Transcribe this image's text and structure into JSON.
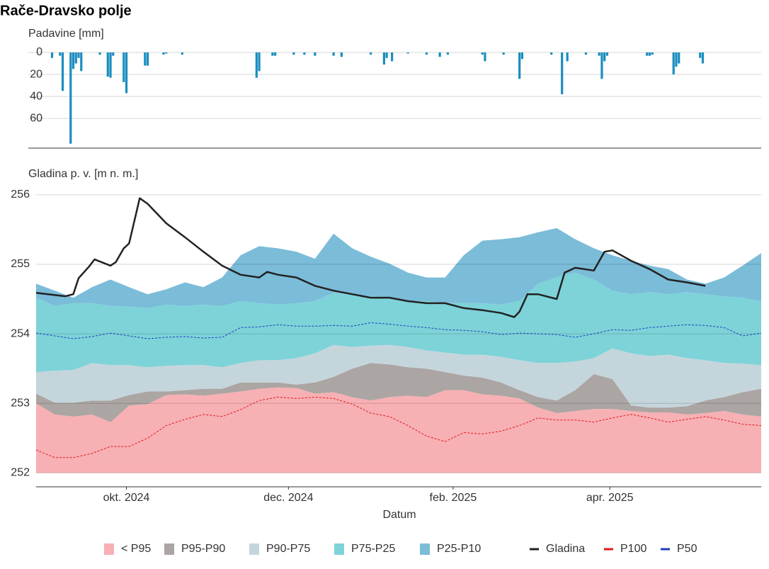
{
  "chart_data": [
    {
      "type": "bar",
      "title": "Rače-Dravsko polje",
      "y_label": "Padavine [mm]",
      "color": "#1a8dbf",
      "xlim": [
        "2024-08-28",
        "2025-05-28"
      ],
      "ylim": [
        0,
        87
      ],
      "y_reversed": true,
      "yticks": [
        0,
        20,
        40,
        60
      ],
      "grid": true,
      "x": [
        "2024-09-03",
        "2024-09-06",
        "2024-09-07",
        "2024-09-10",
        "2024-09-11",
        "2024-09-12",
        "2024-09-13",
        "2024-09-14",
        "2024-09-21",
        "2024-09-24",
        "2024-09-25",
        "2024-09-26",
        "2024-09-30",
        "2024-10-01",
        "2024-10-08",
        "2024-10-09",
        "2024-10-15",
        "2024-10-16",
        "2024-10-22",
        "2024-11-19",
        "2024-11-20",
        "2024-11-25",
        "2024-11-26",
        "2024-12-03",
        "2024-12-07",
        "2024-12-11",
        "2024-12-18",
        "2024-12-21",
        "2025-01-01",
        "2025-01-06",
        "2025-01-07",
        "2025-01-09",
        "2025-01-15",
        "2025-01-22",
        "2025-01-27",
        "2025-01-30",
        "2025-02-12",
        "2025-02-13",
        "2025-02-20",
        "2025-02-26",
        "2025-02-27",
        "2025-03-10",
        "2025-03-14",
        "2025-03-16",
        "2025-03-23",
        "2025-03-28",
        "2025-03-29",
        "2025-03-30",
        "2025-03-31",
        "2025-04-15",
        "2025-04-16",
        "2025-04-17",
        "2025-04-25",
        "2025-04-26",
        "2025-04-27",
        "2025-05-05",
        "2025-05-06"
      ],
      "values": [
        5,
        3,
        35,
        83,
        15,
        10,
        5,
        17,
        2,
        22,
        23,
        3,
        27,
        37,
        12,
        12,
        2,
        1,
        2,
        23,
        17,
        3,
        3,
        2,
        2,
        3,
        3,
        4,
        2,
        11,
        5,
        8,
        1,
        2,
        4,
        2,
        2,
        8,
        2,
        24,
        6,
        2,
        38,
        8,
        2,
        3,
        24,
        8,
        3,
        3,
        3,
        2,
        20,
        13,
        10,
        5,
        10
      ]
    },
    {
      "type": "area",
      "y_label": "Gladina p. v. [m n. m.]",
      "x_label": "Datum",
      "xlim": [
        "2024-08-28",
        "2025-05-28"
      ],
      "ylim": [
        251.8,
        256.1
      ],
      "yticks": [
        252,
        253,
        254,
        255,
        256
      ],
      "grid": true,
      "band_floor": 252,
      "xticks": [
        {
          "value": "2024-10-01",
          "label": "okt. 2024"
        },
        {
          "value": "2024-12-01",
          "label": "dec. 2024"
        },
        {
          "value": "2025-02-01",
          "label": "feb. 2025"
        },
        {
          "value": "2025-04-01",
          "label": "apr. 2025"
        }
      ],
      "x": [
        "2024-08-28",
        "2024-09-04",
        "2024-09-11",
        "2024-09-18",
        "2024-09-25",
        "2024-10-02",
        "2024-10-09",
        "2024-10-16",
        "2024-10-23",
        "2024-10-30",
        "2024-11-06",
        "2024-11-13",
        "2024-11-20",
        "2024-11-27",
        "2024-12-04",
        "2024-12-11",
        "2024-12-18",
        "2024-12-25",
        "2025-01-01",
        "2025-01-08",
        "2025-01-15",
        "2025-01-22",
        "2025-01-29",
        "2025-02-05",
        "2025-02-12",
        "2025-02-19",
        "2025-02-26",
        "2025-03-05",
        "2025-03-12",
        "2025-03-19",
        "2025-03-26",
        "2025-04-02",
        "2025-04-09",
        "2025-04-16",
        "2025-04-23",
        "2025-04-30",
        "2025-05-07",
        "2025-05-14",
        "2025-05-21",
        "2025-05-28"
      ],
      "series": [
        {
          "name": "< P95",
          "style": "band",
          "color": "#f7b0b4",
          "values": [
            253.0,
            252.84,
            252.81,
            252.84,
            252.73,
            252.97,
            252.99,
            253.12,
            253.13,
            253.11,
            253.14,
            253.17,
            253.21,
            253.23,
            253.22,
            253.14,
            253.16,
            253.09,
            253.04,
            253.09,
            253.11,
            253.09,
            253.19,
            253.19,
            253.13,
            253.11,
            253.07,
            252.94,
            252.86,
            252.89,
            252.92,
            252.92,
            252.89,
            252.87,
            252.87,
            252.84,
            252.86,
            252.89,
            252.84,
            252.81
          ]
        },
        {
          "name": "P95-P90",
          "style": "band",
          "color": "#aba5a3",
          "values": [
            253.14,
            253.01,
            253.01,
            253.04,
            253.04,
            253.12,
            253.17,
            253.17,
            253.19,
            253.21,
            253.21,
            253.3,
            253.3,
            253.3,
            253.27,
            253.3,
            253.38,
            253.5,
            253.58,
            253.56,
            253.52,
            253.5,
            253.45,
            253.4,
            253.37,
            253.3,
            253.19,
            253.09,
            253.04,
            253.19,
            253.42,
            253.35,
            252.97,
            252.94,
            252.94,
            252.96,
            253.04,
            253.09,
            253.16,
            253.21
          ]
        },
        {
          "name": "P90-P75",
          "style": "band",
          "color": "#c5d5dc",
          "values": [
            253.45,
            253.47,
            253.48,
            253.58,
            253.55,
            253.55,
            253.52,
            253.54,
            253.55,
            253.55,
            253.52,
            253.58,
            253.62,
            253.62,
            253.65,
            253.72,
            253.84,
            253.81,
            253.83,
            253.84,
            253.81,
            253.76,
            253.73,
            253.7,
            253.7,
            253.67,
            253.62,
            253.58,
            253.58,
            253.6,
            253.65,
            253.79,
            253.72,
            253.68,
            253.7,
            253.65,
            253.62,
            253.58,
            253.57,
            253.55
          ]
        },
        {
          "name": "P75-P25",
          "style": "band",
          "color": "#7dd3d8",
          "values": [
            254.52,
            254.4,
            254.44,
            254.44,
            254.4,
            254.39,
            254.37,
            254.42,
            254.4,
            254.42,
            254.4,
            254.47,
            254.44,
            254.42,
            254.44,
            254.47,
            254.59,
            254.57,
            254.54,
            254.52,
            254.47,
            254.47,
            254.44,
            254.44,
            254.44,
            254.42,
            254.47,
            254.72,
            254.81,
            254.88,
            254.78,
            254.62,
            254.57,
            254.6,
            254.57,
            254.6,
            254.57,
            254.54,
            254.52,
            254.47
          ]
        },
        {
          "name": "P25-P10",
          "style": "band",
          "color": "#7bbcd9",
          "values": [
            254.72,
            254.62,
            254.52,
            254.67,
            254.78,
            254.67,
            254.57,
            254.64,
            254.74,
            254.67,
            254.81,
            255.13,
            255.26,
            255.23,
            255.18,
            255.08,
            255.44,
            255.23,
            255.11,
            255.01,
            254.88,
            254.81,
            254.81,
            255.13,
            255.34,
            255.36,
            255.39,
            255.46,
            255.52,
            255.36,
            255.23,
            255.13,
            255.05,
            254.98,
            254.93,
            254.78,
            254.72,
            254.81,
            254.98,
            255.16
          ]
        },
        {
          "name": "Gladina",
          "style": "line",
          "color": "#222222",
          "x": [
            "2024-08-28",
            "2024-09-08",
            "2024-09-11",
            "2024-09-13",
            "2024-09-17",
            "2024-09-19",
            "2024-09-25",
            "2024-09-27",
            "2024-09-30",
            "2024-10-02",
            "2024-10-06",
            "2024-10-09",
            "2024-10-16",
            "2024-10-23",
            "2024-10-30",
            "2024-11-06",
            "2024-11-13",
            "2024-11-20",
            "2024-11-23",
            "2024-11-27",
            "2024-12-04",
            "2024-12-11",
            "2024-12-18",
            "2024-12-25",
            "2025-01-01",
            "2025-01-08",
            "2025-01-15",
            "2025-01-22",
            "2025-01-29",
            "2025-02-05",
            "2025-02-12",
            "2025-02-19",
            "2025-02-24",
            "2025-02-26",
            "2025-03-01",
            "2025-03-05",
            "2025-03-12",
            "2025-03-15",
            "2025-03-19",
            "2025-03-26",
            "2025-03-30",
            "2025-04-02",
            "2025-04-09",
            "2025-04-16",
            "2025-04-23",
            "2025-04-30",
            "2025-05-07"
          ],
          "values": [
            254.59,
            254.54,
            254.57,
            254.8,
            254.97,
            255.07,
            254.98,
            255.03,
            255.23,
            255.3,
            255.95,
            255.87,
            255.59,
            255.39,
            255.18,
            254.98,
            254.85,
            254.81,
            254.89,
            254.85,
            254.81,
            254.69,
            254.62,
            254.57,
            254.52,
            254.52,
            254.47,
            254.44,
            254.44,
            254.37,
            254.34,
            254.3,
            254.24,
            254.32,
            254.57,
            254.57,
            254.5,
            254.88,
            254.95,
            254.91,
            255.18,
            255.2,
            255.05,
            254.93,
            254.78,
            254.74,
            254.69
          ]
        },
        {
          "name": "P100",
          "style": "line",
          "dashed": true,
          "color": "#e31a1c",
          "values": [
            252.33,
            252.22,
            252.22,
            252.28,
            252.38,
            252.38,
            252.5,
            252.68,
            252.77,
            252.84,
            252.81,
            252.91,
            253.04,
            253.09,
            253.07,
            253.09,
            253.07,
            252.99,
            252.86,
            252.81,
            252.68,
            252.53,
            252.45,
            252.58,
            252.56,
            252.6,
            252.68,
            252.79,
            252.76,
            252.76,
            252.73,
            252.79,
            252.84,
            252.79,
            252.73,
            252.77,
            252.81,
            252.76,
            252.7,
            252.68
          ]
        },
        {
          "name": "P50",
          "style": "line",
          "dashed": true,
          "color": "#1f3fbf",
          "values": [
            254.01,
            253.97,
            253.93,
            253.96,
            254.01,
            253.97,
            253.93,
            253.95,
            253.96,
            253.94,
            253.95,
            254.09,
            254.1,
            254.13,
            254.11,
            254.11,
            254.12,
            254.11,
            254.16,
            254.14,
            254.11,
            254.09,
            254.06,
            254.05,
            254.03,
            253.99,
            254.01,
            254.0,
            253.99,
            253.95,
            254.0,
            254.06,
            254.05,
            254.09,
            254.11,
            254.13,
            254.12,
            254.09,
            253.97,
            254.01
          ]
        }
      ]
    }
  ]
}
